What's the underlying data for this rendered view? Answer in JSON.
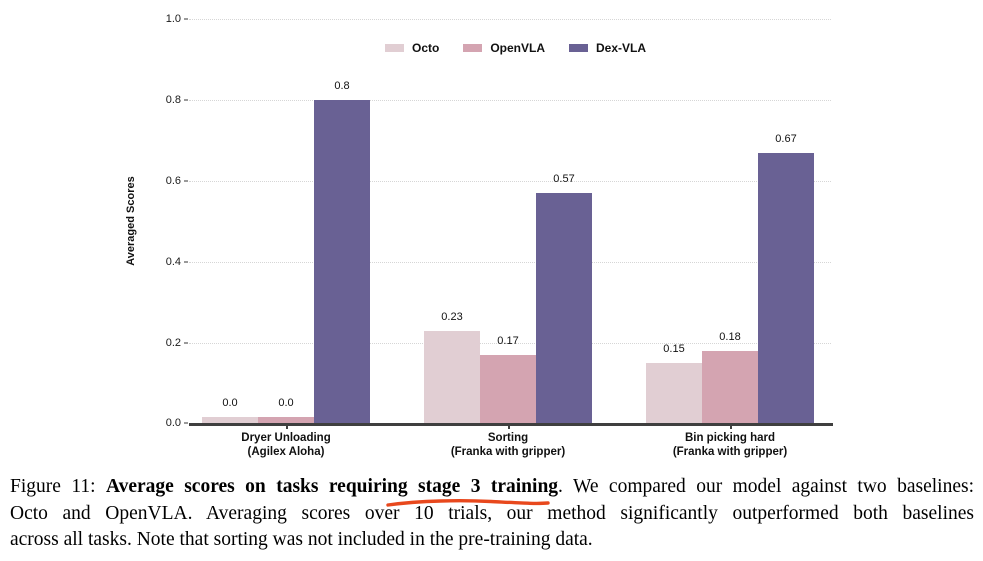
{
  "figure": {
    "caption": {
      "lines": [
        {
          "justify": true,
          "segments": [
            {
              "text": "Figure 11: ",
              "bold": false
            },
            {
              "text": "Average scores on tasks requiring stage 3 training",
              "bold": true
            },
            {
              "text": ". We compared our model against two baselines:",
              "bold": false
            }
          ]
        },
        {
          "justify": true,
          "segments": [
            {
              "text": "Octo and OpenVLA. Averaging scores over 10 trials, our method significantly outperformed both baselines",
              "bold": false
            }
          ]
        },
        {
          "justify": false,
          "segments": [
            {
              "text": "across all tasks. Note that sorting was not included in the pre-training data.",
              "bold": false
            }
          ]
        }
      ],
      "annotation": {
        "type": "hand-drawn underline",
        "target_text": "ring stage 3 training",
        "color": "#e8481d"
      }
    }
  },
  "chart_data": {
    "type": "bar",
    "title": "",
    "xlabel": "",
    "ylabel": "Averaged Scores",
    "ylim": [
      0,
      1.0
    ],
    "yticks": [
      "0.0",
      "0.2",
      "0.4",
      "0.6",
      "0.8",
      "1.0"
    ],
    "grid": "horizontal dotted",
    "legend_position": "top-center",
    "categories": [
      [
        "Dryer Unloading",
        "(Agilex Aloha)"
      ],
      [
        "Sorting",
        "(Franka with gripper)"
      ],
      [
        "Bin picking hard",
        "(Franka with gripper)"
      ]
    ],
    "series": [
      {
        "name": "Octo",
        "color": "#e1ced3",
        "values": [
          0.0,
          0.23,
          0.15
        ],
        "labels": [
          "0.0",
          "0.23",
          "0.15"
        ]
      },
      {
        "name": "OpenVLA",
        "color": "#d4a4b1",
        "values": [
          0.0,
          0.17,
          0.18
        ],
        "labels": [
          "0.0",
          "0.17",
          "0.18"
        ]
      },
      {
        "name": "Dex-VLA",
        "color": "#696194",
        "values": [
          0.8,
          0.57,
          0.67
        ],
        "labels": [
          "0.8",
          "0.57",
          "0.67"
        ]
      }
    ],
    "colors": {
      "axis_line": "#3f3f3f",
      "gridline": "#d6d6d6",
      "text": "#111111"
    }
  }
}
